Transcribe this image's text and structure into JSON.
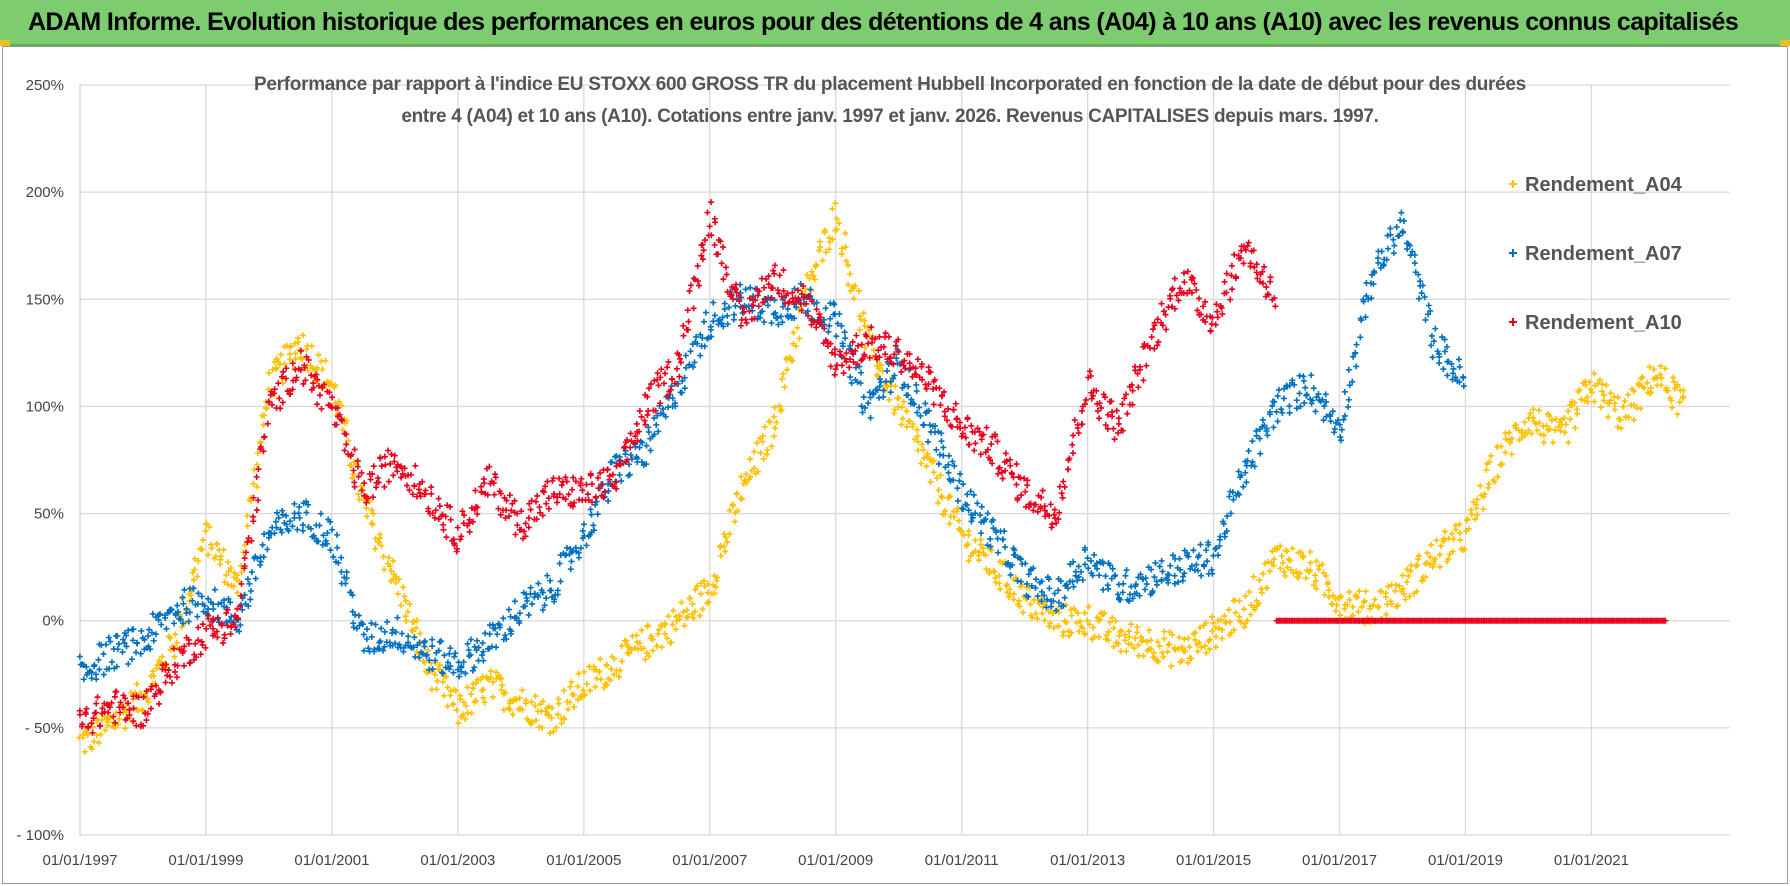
{
  "banner": {
    "title": "ADAM Informe. Evolution historique des performances en euros pour des détentions de 4 ans (A04) à 10 ans (A10) avec les revenus connus capitalisés"
  },
  "colors": {
    "banner": "#7dcc6f",
    "A04": "#ffc000",
    "A07": "#0070c0",
    "A10": "#e8001c",
    "grid": "#d9d9d9"
  },
  "chart_data": {
    "type": "scatter",
    "title_line1": "Performance par rapport à l'indice EU STOXX 600 GROSS TR  du placement Hubbell Incorporated en fonction de la date de début pour des durées",
    "title_line2": "entre 4 (A04) et 10 ans (A10). Cotations entre janv. 1997 et janv. 2026. Revenus CAPITALISES depuis mars. 1997.",
    "y_ticks": [
      "250%",
      "200%",
      "150%",
      "100%",
      "50%",
      "0%",
      "- 50%",
      "- 100%"
    ],
    "ylim": [
      -100,
      250
    ],
    "x_ticks": [
      "01/01/1997",
      "01/01/1999",
      "01/01/2001",
      "01/01/2003",
      "01/01/2005",
      "01/01/2007",
      "01/01/2009",
      "01/01/2011",
      "01/01/2013",
      "01/01/2015",
      "01/01/2017",
      "01/01/2019",
      "01/01/2021"
    ],
    "xlim": [
      1997.0,
      2023.2
    ],
    "legend_position": "top-right",
    "series": [
      {
        "name": "Rendement_A04",
        "color": "#ffc000",
        "x": [
          1997.0,
          1997.5,
          1998.0,
          1998.5,
          1999.0,
          1999.5,
          2000.0,
          2000.5,
          2001.0,
          2001.5,
          2002.0,
          2002.5,
          2003.0,
          2003.5,
          2004.0,
          2004.5,
          2005.0,
          2005.5,
          2006.0,
          2006.5,
          2007.0,
          2007.5,
          2008.0,
          2008.5,
          2009.0,
          2009.5,
          2010.0,
          2010.5,
          2011.0,
          2011.5,
          2012.0,
          2012.5,
          2013.0,
          2013.5,
          2014.0,
          2014.5,
          2015.0,
          2015.5,
          2016.0,
          2016.5,
          2017.0,
          2017.5,
          2018.0,
          2018.5,
          2019.0,
          2019.5,
          2020.0,
          2020.5,
          2021.0,
          2021.5,
          2022.0,
          2022.5
        ],
        "y": [
          -57,
          -48,
          -35,
          -10,
          40,
          15,
          110,
          130,
          110,
          55,
          20,
          -20,
          -42,
          -30,
          -38,
          -45,
          -30,
          -20,
          -10,
          0,
          15,
          60,
          90,
          150,
          190,
          130,
          100,
          70,
          40,
          25,
          10,
          0,
          0,
          -8,
          -10,
          -15,
          -5,
          5,
          30,
          25,
          10,
          5,
          15,
          30,
          40,
          75,
          95,
          85,
          110,
          95,
          115,
          100
        ]
      },
      {
        "name": "Rendement_A07",
        "color": "#0070c0",
        "x": [
          1997.0,
          1997.5,
          1998.0,
          1998.5,
          1999.0,
          1999.5,
          2000.0,
          2000.5,
          2001.0,
          2001.5,
          2002.0,
          2002.5,
          2003.0,
          2003.5,
          2004.0,
          2004.5,
          2005.0,
          2005.5,
          2006.0,
          2006.5,
          2007.0,
          2007.5,
          2008.0,
          2008.5,
          2009.0,
          2009.5,
          2010.0,
          2010.5,
          2011.0,
          2011.5,
          2012.0,
          2012.5,
          2013.0,
          2013.5,
          2014.0,
          2014.5,
          2015.0,
          2015.5,
          2016.0,
          2016.5,
          2017.0,
          2017.5,
          2018.0,
          2018.5,
          2019.0
        ],
        "y": [
          -25,
          -15,
          -10,
          5,
          10,
          0,
          40,
          50,
          40,
          -10,
          -5,
          -15,
          -20,
          -10,
          5,
          15,
          40,
          70,
          80,
          110,
          140,
          150,
          145,
          150,
          140,
          100,
          120,
          90,
          60,
          40,
          20,
          10,
          30,
          15,
          20,
          25,
          30,
          70,
          100,
          110,
          90,
          160,
          185,
          130,
          110
        ]
      },
      {
        "name": "Rendement_A10",
        "color": "#e8001c",
        "x": [
          1997.0,
          1997.5,
          1998.0,
          1998.5,
          1999.0,
          1999.5,
          2000.0,
          2000.5,
          2001.0,
          2001.5,
          2002.0,
          2002.5,
          2003.0,
          2003.5,
          2004.0,
          2004.5,
          2005.0,
          2005.5,
          2006.0,
          2006.5,
          2007.0,
          2007.5,
          2008.0,
          2008.5,
          2009.0,
          2009.5,
          2010.0,
          2010.5,
          2011.0,
          2011.5,
          2012.0,
          2012.5,
          2013.0,
          2013.5,
          2014.0,
          2014.5,
          2015.0,
          2015.5,
          2016.0
        ],
        "y": [
          -48,
          -40,
          -42,
          -20,
          -5,
          0,
          100,
          120,
          100,
          60,
          75,
          60,
          40,
          65,
          45,
          60,
          60,
          65,
          100,
          120,
          190,
          140,
          160,
          150,
          120,
          130,
          125,
          110,
          90,
          80,
          60,
          50,
          110,
          90,
          130,
          160,
          140,
          175,
          150
        ]
      },
      {
        "name": "Rendement_A10",
        "color": "#e8001c",
        "x": [
          2016.0,
          2022.2
        ],
        "y": [
          0,
          0
        ],
        "note": "flat segment at 0%"
      }
    ]
  },
  "legend": {
    "items": [
      {
        "label": "Rendement_A04",
        "color": "#ffc000"
      },
      {
        "label": "Rendement_A07",
        "color": "#0070c0"
      },
      {
        "label": "Rendement_A10",
        "color": "#e8001c"
      }
    ]
  }
}
